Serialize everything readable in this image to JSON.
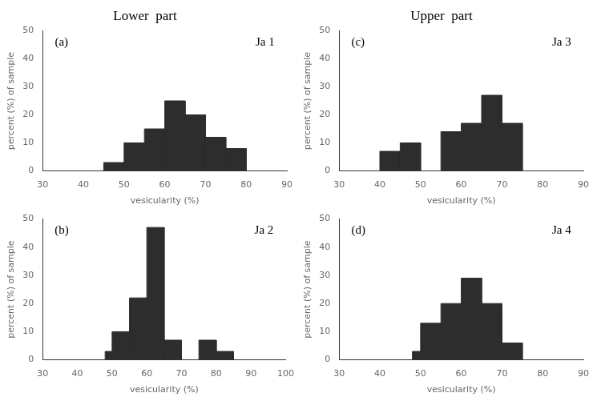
{
  "chart_data": [
    {
      "type": "histogram",
      "title": "Lower  part",
      "annotations": [
        "(a)",
        "Ja 1"
      ],
      "xlabel": "vesicularity (%)",
      "ylabel": "percent (%) of sample",
      "x": [
        45,
        50,
        55,
        60,
        65,
        70,
        75
      ],
      "widths": [
        5,
        5,
        5,
        5,
        5,
        5,
        5
      ],
      "values": [
        3,
        10,
        15,
        25,
        20,
        12,
        8
      ],
      "color": "#2d2d2d",
      "xlim": [
        30,
        90
      ],
      "ylim": [
        0,
        50
      ],
      "xticks": [
        30,
        40,
        50,
        60,
        70,
        80,
        90
      ],
      "yticks": [
        0,
        10,
        20,
        30,
        40,
        50
      ],
      "grid": false
    },
    {
      "type": "histogram",
      "annotations": [
        "(b)",
        "Ja 2"
      ],
      "xlabel": "vesicularity (%)",
      "ylabel": "percent (%) of sample",
      "x": [
        48,
        50,
        55,
        60,
        65,
        75,
        80
      ],
      "widths": [
        2,
        5,
        5,
        5,
        5,
        5,
        5
      ],
      "values": [
        3,
        10,
        22,
        47,
        7,
        7,
        3
      ],
      "color": "#2d2d2d",
      "xlim": [
        30,
        100
      ],
      "ylim": [
        0,
        50
      ],
      "xticks": [
        30,
        40,
        50,
        60,
        70,
        80,
        90,
        100
      ],
      "yticks": [
        0,
        10,
        20,
        30,
        40,
        50
      ],
      "grid": false
    },
    {
      "type": "histogram",
      "title": "Upper  part",
      "annotations": [
        "(c)",
        "Ja 3"
      ],
      "xlabel": "vesicularity (%)",
      "ylabel": "percent (%) of sample",
      "x": [
        40,
        45,
        55,
        60,
        65,
        70
      ],
      "widths": [
        5,
        5,
        5,
        5,
        5,
        5
      ],
      "values": [
        7,
        10,
        14,
        17,
        27,
        17
      ],
      "color": "#2d2d2d",
      "xlim": [
        30,
        90
      ],
      "ylim": [
        0,
        50
      ],
      "xticks": [
        30,
        40,
        50,
        60,
        70,
        80,
        90
      ],
      "yticks": [
        0,
        10,
        20,
        30,
        40,
        50
      ],
      "grid": false
    },
    {
      "type": "histogram",
      "annotations": [
        "(d)",
        "Ja 4"
      ],
      "xlabel": "vesicularity (%)",
      "ylabel": "percent (%) of sample",
      "x": [
        48,
        50,
        55,
        60,
        65,
        70,
        75
      ],
      "widths": [
        2,
        5,
        5,
        5,
        5,
        5,
        5
      ],
      "values": [
        3,
        13,
        20,
        29,
        20,
        6,
        0
      ],
      "color": "#2d2d2d",
      "xlim": [
        30,
        90
      ],
      "ylim": [
        0,
        50
      ],
      "xticks": [
        30,
        40,
        50,
        60,
        70,
        80,
        90
      ],
      "yticks": [
        0,
        10,
        20,
        30,
        40,
        50
      ],
      "grid": false
    }
  ]
}
